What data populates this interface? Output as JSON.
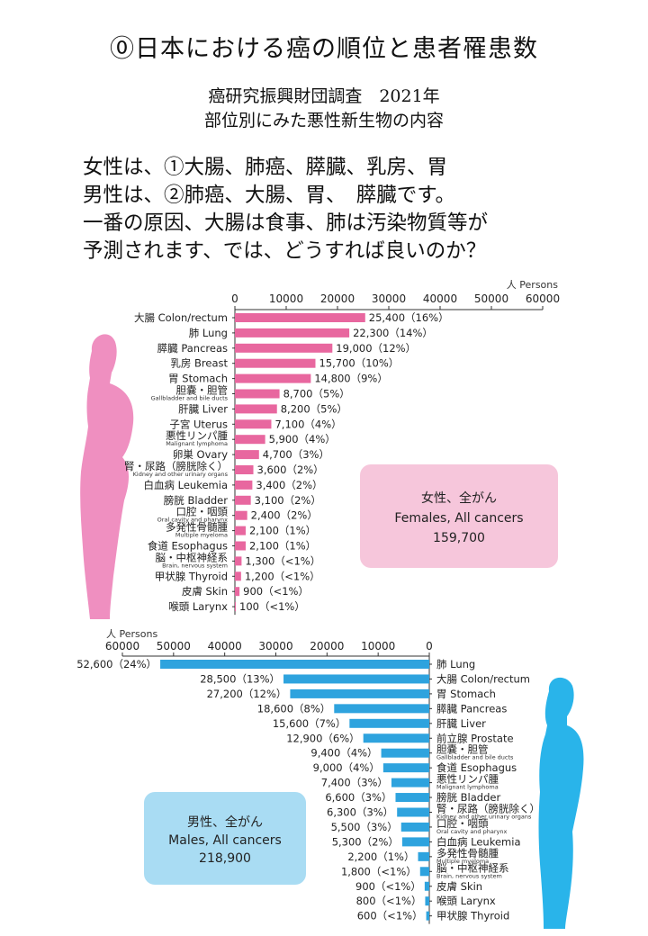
{
  "header": {
    "title": "⓪日本における癌の順位と患者罹患数",
    "subtitle1": "癌研究振興財団調査　2021年",
    "subtitle2": "部位別にみた悪性新生物の内容"
  },
  "body_text": [
    "女性は、①大腸、肺癌、膵臓、乳房、胃",
    "男性は、②肺癌、大腸、胃、　膵臓です。",
    "一番の原因、大腸は食事、肺は汚染物質等が",
    "予測されます、では、どうすれば良いのか？"
  ],
  "colors": {
    "female_bar": "#e8679f",
    "female_box": "#f6c6db",
    "female_figure": "#ef8fc0",
    "male_bar": "#2ea3de",
    "male_box": "#a9dcf3",
    "male_figure": "#29b4ea"
  },
  "chart_data": [
    {
      "type": "bar",
      "orientation": "horizontal",
      "unit_label": "人 Persons",
      "ticks": [
        "0",
        "10000",
        "20000",
        "30000",
        "40000",
        "50000",
        "60000"
      ],
      "xlim": [
        0,
        60000
      ],
      "summary_box": [
        "女性、全がん",
        "Females, All cancers",
        "159,700"
      ],
      "categories": [
        {
          "main": "大腸 Colon/rectum",
          "sub": ""
        },
        {
          "main": "肺 Lung",
          "sub": ""
        },
        {
          "main": "膵臓 Pancreas",
          "sub": ""
        },
        {
          "main": "乳房 Breast",
          "sub": ""
        },
        {
          "main": "胃 Stomach",
          "sub": ""
        },
        {
          "main": "胆嚢・胆管",
          "sub": "Gallbladder and bile ducts"
        },
        {
          "main": "肝臓 Liver",
          "sub": ""
        },
        {
          "main": "子宮 Uterus",
          "sub": ""
        },
        {
          "main": "悪性リンパ腫",
          "sub": "Malignant lymphoma"
        },
        {
          "main": "卵巣 Ovary",
          "sub": ""
        },
        {
          "main": "腎・尿路（膀胱除く）",
          "sub": "Kidney and other urinary organs"
        },
        {
          "main": "白血病 Leukemia",
          "sub": ""
        },
        {
          "main": "膀胱 Bladder",
          "sub": ""
        },
        {
          "main": "口腔・咽頭",
          "sub": "Oral cavity and pharynx"
        },
        {
          "main": "多発性骨髄腫",
          "sub": "Multiple myeloma"
        },
        {
          "main": "食道 Esophagus",
          "sub": ""
        },
        {
          "main": "脳・中枢神経系",
          "sub": "Brain, nervous system"
        },
        {
          "main": "甲状腺 Thyroid",
          "sub": ""
        },
        {
          "main": "皮膚 Skin",
          "sub": ""
        },
        {
          "main": "喉頭 Larynx",
          "sub": ""
        }
      ],
      "values": [
        25400,
        22300,
        19000,
        15700,
        14800,
        8700,
        8200,
        7100,
        5900,
        4700,
        3600,
        3400,
        3100,
        2400,
        2100,
        2100,
        1300,
        1200,
        900,
        100
      ],
      "value_labels": [
        "25,400（16%）",
        "22,300（14%）",
        "19,000（12%）",
        "15,700（10%）",
        "14,800（9%）",
        "8,700（5%）",
        "8,200（5%）",
        "7,100（4%）",
        "5,900（4%）",
        "4,700（3%）",
        "3,600（2%）",
        "3,400（2%）",
        "3,100（2%）",
        "2,400（2%）",
        "2,100（1%）",
        "2,100（1%）",
        "1,300（<1%）",
        "1,200（<1%）",
        "900（<1%）",
        "100（<1%）"
      ]
    },
    {
      "type": "bar",
      "orientation": "horizontal-reversed",
      "unit_label": "人 Persons",
      "ticks": [
        "60000",
        "50000",
        "40000",
        "30000",
        "20000",
        "10000",
        "0"
      ],
      "xlim": [
        0,
        60000
      ],
      "summary_box": [
        "男性、全がん",
        "Males, All cancers",
        "218,900"
      ],
      "categories": [
        {
          "main": "肺 Lung",
          "sub": ""
        },
        {
          "main": "大腸 Colon/rectum",
          "sub": ""
        },
        {
          "main": "胃 Stomach",
          "sub": ""
        },
        {
          "main": "膵臓 Pancreas",
          "sub": ""
        },
        {
          "main": "肝臓 Liver",
          "sub": ""
        },
        {
          "main": "前立腺 Prostate",
          "sub": ""
        },
        {
          "main": "胆嚢・胆管",
          "sub": "Gallbladder and bile ducts"
        },
        {
          "main": "食道 Esophagus",
          "sub": ""
        },
        {
          "main": "悪性リンパ腫",
          "sub": "Malignant lymphoma"
        },
        {
          "main": "膀胱 Bladder",
          "sub": ""
        },
        {
          "main": "腎・尿路（膀胱除く）",
          "sub": "Kidney and other urinary organs"
        },
        {
          "main": "口腔・咽頭",
          "sub": "Oral cavity and pharynx"
        },
        {
          "main": "白血病 Leukemia",
          "sub": ""
        },
        {
          "main": "多発性骨髄腫",
          "sub": "Multiple myeloma"
        },
        {
          "main": "脳・中枢神経系",
          "sub": "Brain, nervous system"
        },
        {
          "main": "皮膚 Skin",
          "sub": ""
        },
        {
          "main": "喉頭 Larynx",
          "sub": ""
        },
        {
          "main": "甲状腺 Thyroid",
          "sub": ""
        }
      ],
      "values": [
        52600,
        28500,
        27200,
        18600,
        15600,
        12900,
        9400,
        9000,
        7400,
        6600,
        6300,
        5500,
        5300,
        2200,
        1800,
        900,
        800,
        600
      ],
      "value_labels": [
        "52,600（24%）",
        "28,500（13%）",
        "27,200（12%）",
        "18,600（8%）",
        "15,600（7%）",
        "12,900（6%）",
        "9,400（4%）",
        "9,000（4%）",
        "7,400（3%）",
        "6,600（3%）",
        "6,300（3%）",
        "5,500（3%）",
        "5,300（2%）",
        "2,200（1%）",
        "1,800（<1%）",
        "900（<1%）",
        "800（<1%）",
        "600（<1%）"
      ]
    }
  ]
}
